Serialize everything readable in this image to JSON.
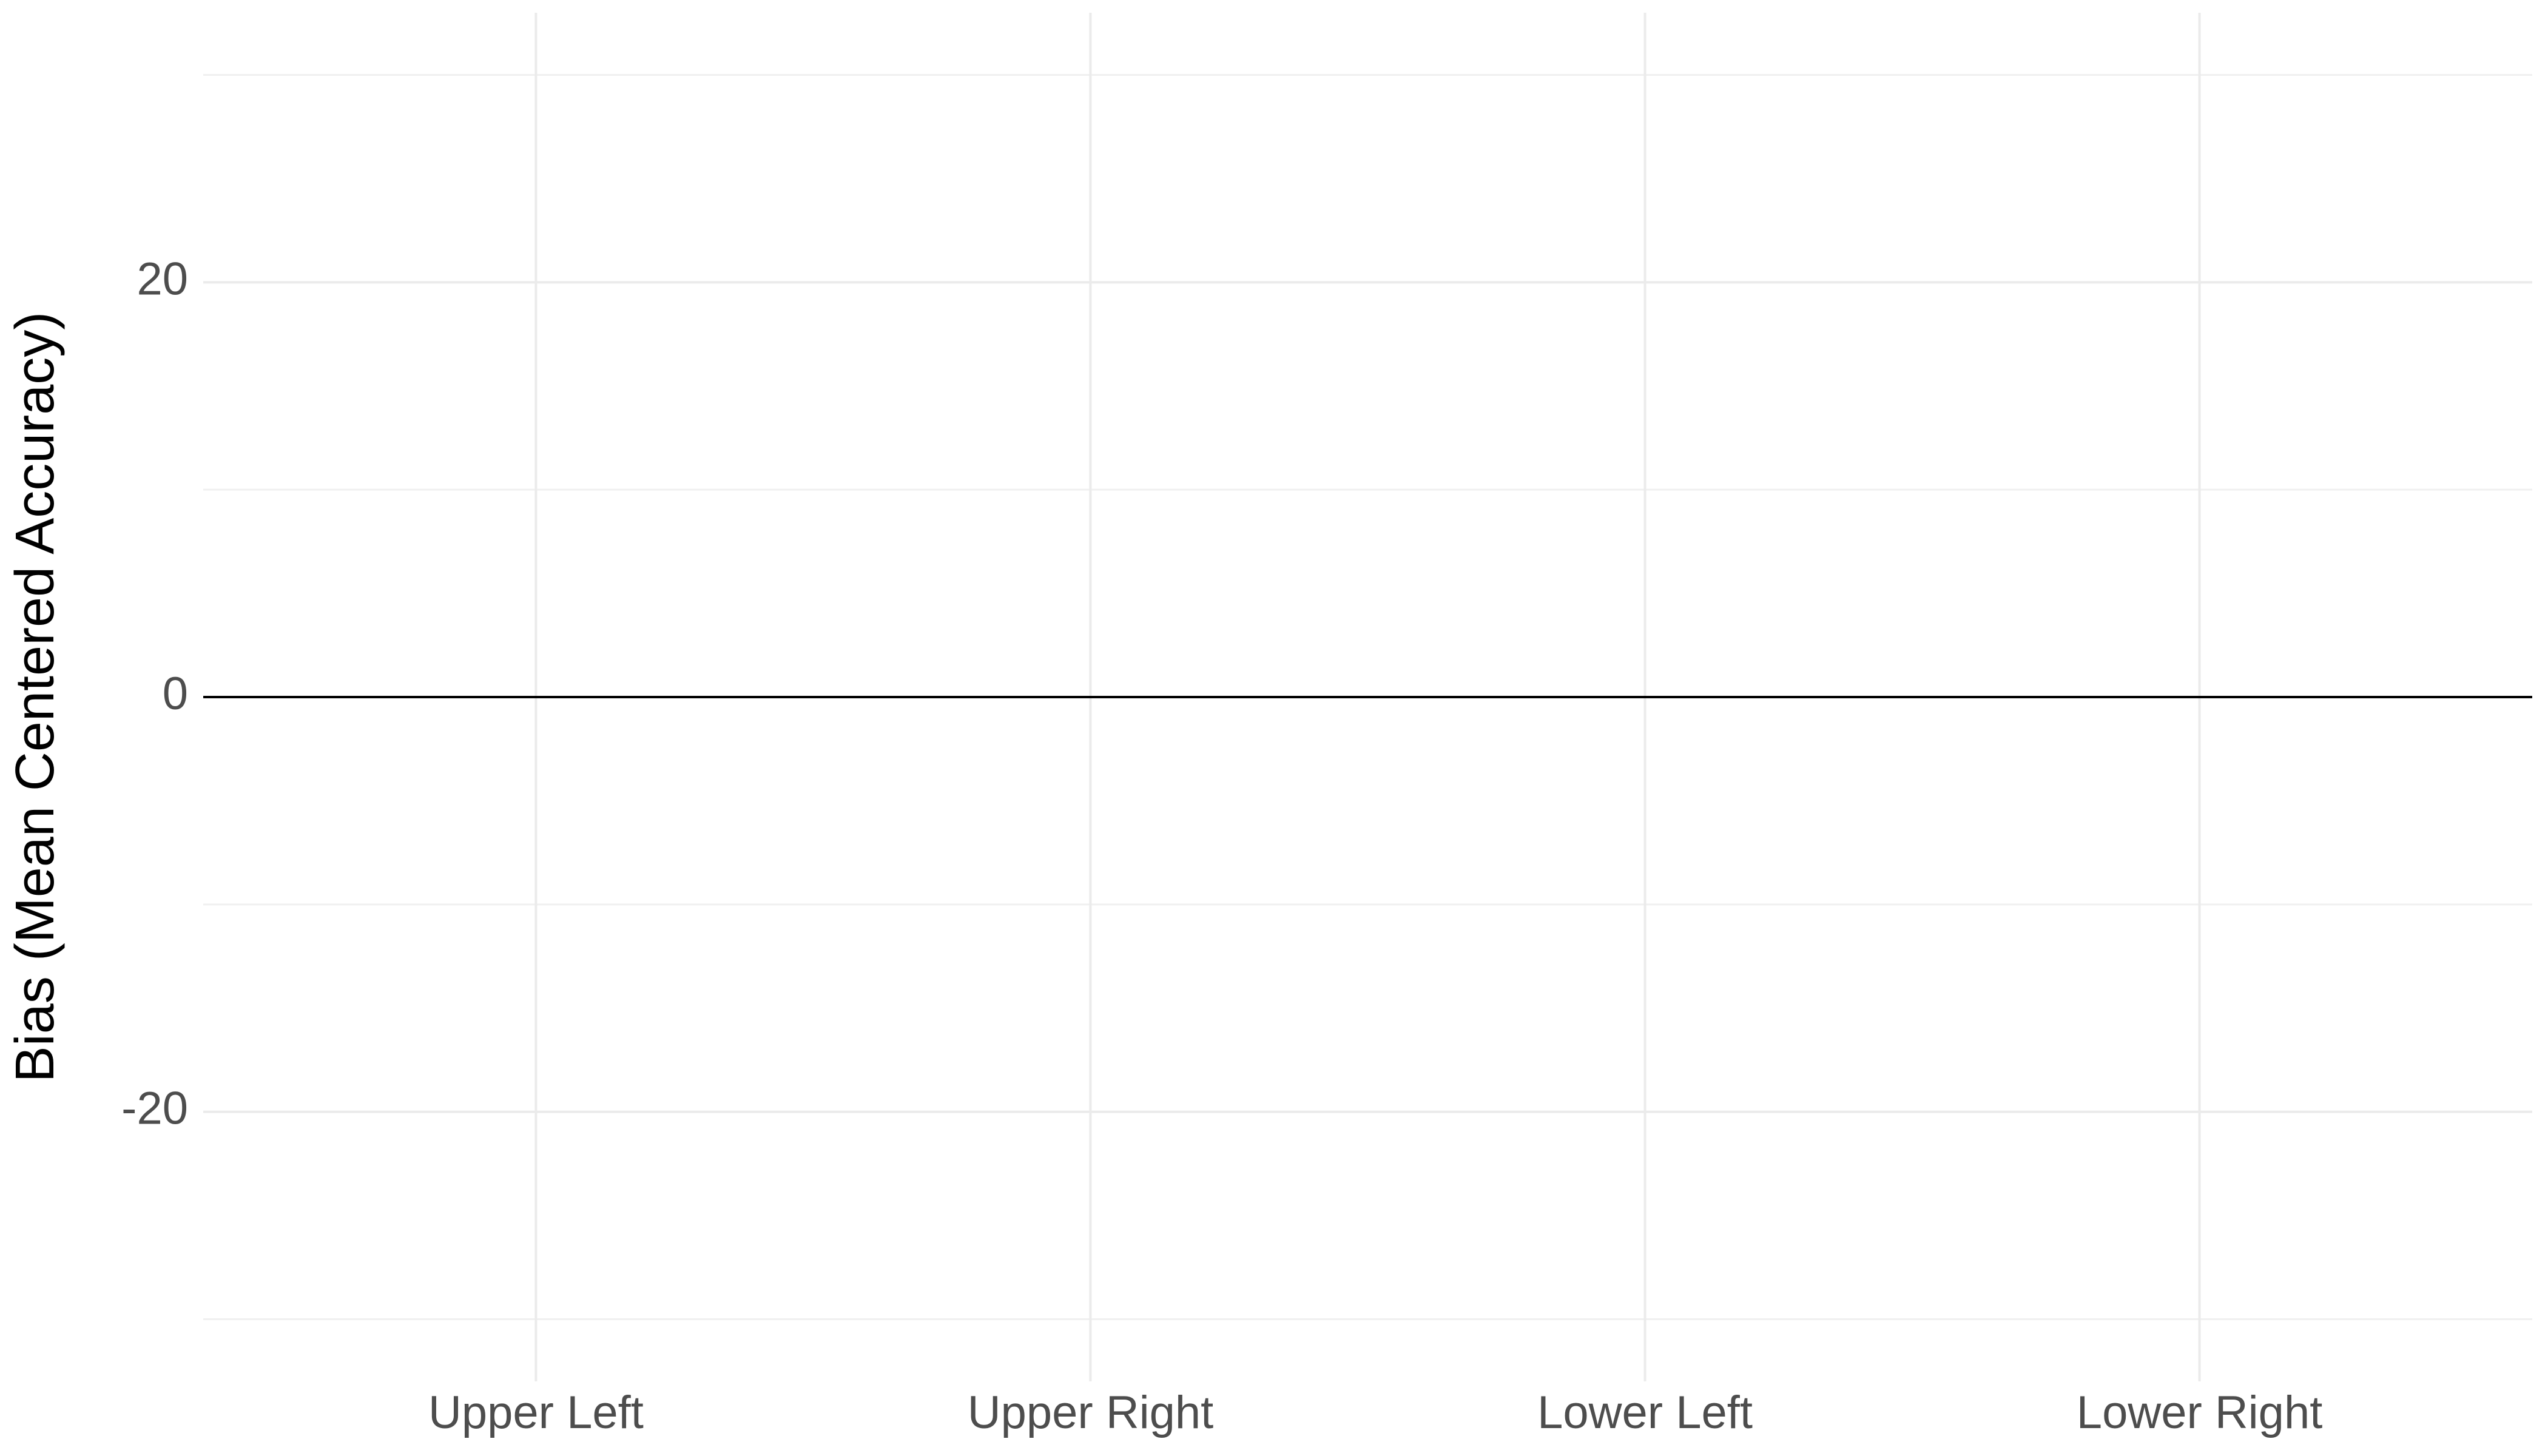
{
  "chart_data": {
    "type": "bar",
    "ylabel": "Bias (Mean Centered Accuracy)",
    "categories": [
      "Upper Left",
      "Upper Right",
      "Lower Left",
      "Lower Right"
    ],
    "ylim": [
      -33,
      33
    ],
    "yticks": [
      -20,
      0,
      20
    ],
    "minor_yticks": [
      -30,
      -10,
      10,
      30
    ],
    "hline": 0,
    "grid": true
  }
}
